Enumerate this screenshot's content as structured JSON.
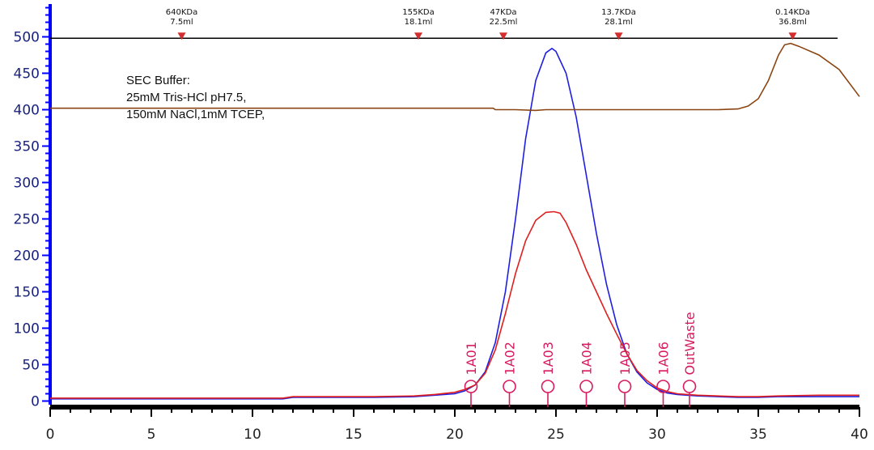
{
  "chart_data": {
    "type": "line",
    "xlim": [
      0,
      40
    ],
    "ylim": [
      -5,
      545
    ],
    "x_ticks": [
      0,
      5,
      10,
      15,
      20,
      25,
      30,
      35,
      40
    ],
    "y_ticks": [
      0,
      50,
      100,
      150,
      200,
      250,
      300,
      350,
      400,
      450,
      500
    ],
    "y_minor_step": 10,
    "x_minor_step": 1,
    "annotation_text": [
      "SEC Buffer:",
      "25mM Tris-HCl pH7.5,",
      "150mM NaCl,1mM TCEP,"
    ],
    "mw_markers": [
      {
        "mw": "640KDa",
        "vol": "7.5ml",
        "x": 6.5
      },
      {
        "mw": "155KDa",
        "vol": "18.1ml",
        "x": 18.2
      },
      {
        "mw": "47KDa",
        "vol": "22.5ml",
        "x": 22.4
      },
      {
        "mw": "13.7KDa",
        "vol": "28.1ml",
        "x": 28.1
      },
      {
        "mw": "0.14KDa",
        "vol": "36.8ml",
        "x": 36.7
      }
    ],
    "mw_marker_line_y": 498,
    "fractions": [
      {
        "label": "1A01",
        "x": 20.8
      },
      {
        "label": "1A02",
        "x": 22.7
      },
      {
        "label": "1A03",
        "x": 24.6
      },
      {
        "label": "1A04",
        "x": 26.5
      },
      {
        "label": "1A05",
        "x": 28.4
      },
      {
        "label": "1A06",
        "x": 30.3
      },
      {
        "label": "OutWaste",
        "x": 31.6
      }
    ],
    "series": [
      {
        "color": "#1f1fe0",
        "x": [
          0,
          5,
          10,
          11.5,
          12,
          14,
          16,
          18,
          19,
          20,
          20.5,
          21,
          21.5,
          22,
          22.5,
          23,
          23.5,
          24,
          24.5,
          24.8,
          25,
          25.5,
          26,
          26.5,
          27,
          27.5,
          28,
          28.5,
          29,
          29.5,
          30,
          30.5,
          31,
          32,
          33,
          34,
          35,
          36,
          38,
          40
        ],
        "y": [
          3,
          3,
          3,
          3,
          5,
          5,
          5,
          6,
          8,
          10,
          14,
          22,
          40,
          80,
          150,
          250,
          360,
          440,
          478,
          484,
          480,
          450,
          390,
          310,
          230,
          160,
          105,
          65,
          40,
          25,
          16,
          11,
          9,
          7,
          6,
          5,
          5,
          6,
          6,
          6
        ]
      },
      {
        "color": "#e01f1f",
        "x": [
          0,
          5,
          10,
          11.5,
          12,
          14,
          16,
          18,
          19,
          20,
          20.5,
          21,
          21.5,
          22,
          22.5,
          23,
          23.5,
          24,
          24.5,
          24.9,
          25.2,
          25.5,
          26,
          26.5,
          27,
          27.5,
          28,
          28.5,
          29,
          29.5,
          30,
          30.5,
          31,
          32,
          33,
          34,
          35,
          36,
          38,
          40
        ],
        "y": [
          4,
          4,
          4,
          4,
          6,
          6,
          6,
          7,
          9,
          12,
          16,
          22,
          38,
          70,
          120,
          175,
          220,
          248,
          259,
          260,
          258,
          245,
          215,
          180,
          150,
          120,
          92,
          65,
          42,
          28,
          18,
          13,
          10,
          8,
          7,
          6,
          6,
          7,
          8,
          8
        ]
      },
      {
        "color": "#8b4513",
        "x": [
          0,
          10,
          20,
          21.9,
          22,
          23,
          24,
          24.5,
          25,
          26,
          28,
          30,
          33,
          34,
          34.5,
          35,
          35.5,
          36,
          36.3,
          36.6,
          37,
          38,
          39,
          40
        ],
        "y": [
          402,
          402,
          402,
          402,
          400,
          400,
          399,
          400,
          400,
          400,
          400,
          400,
          400,
          401,
          405,
          415,
          440,
          475,
          489,
          491,
          487,
          475,
          455,
          418
        ]
      }
    ]
  }
}
